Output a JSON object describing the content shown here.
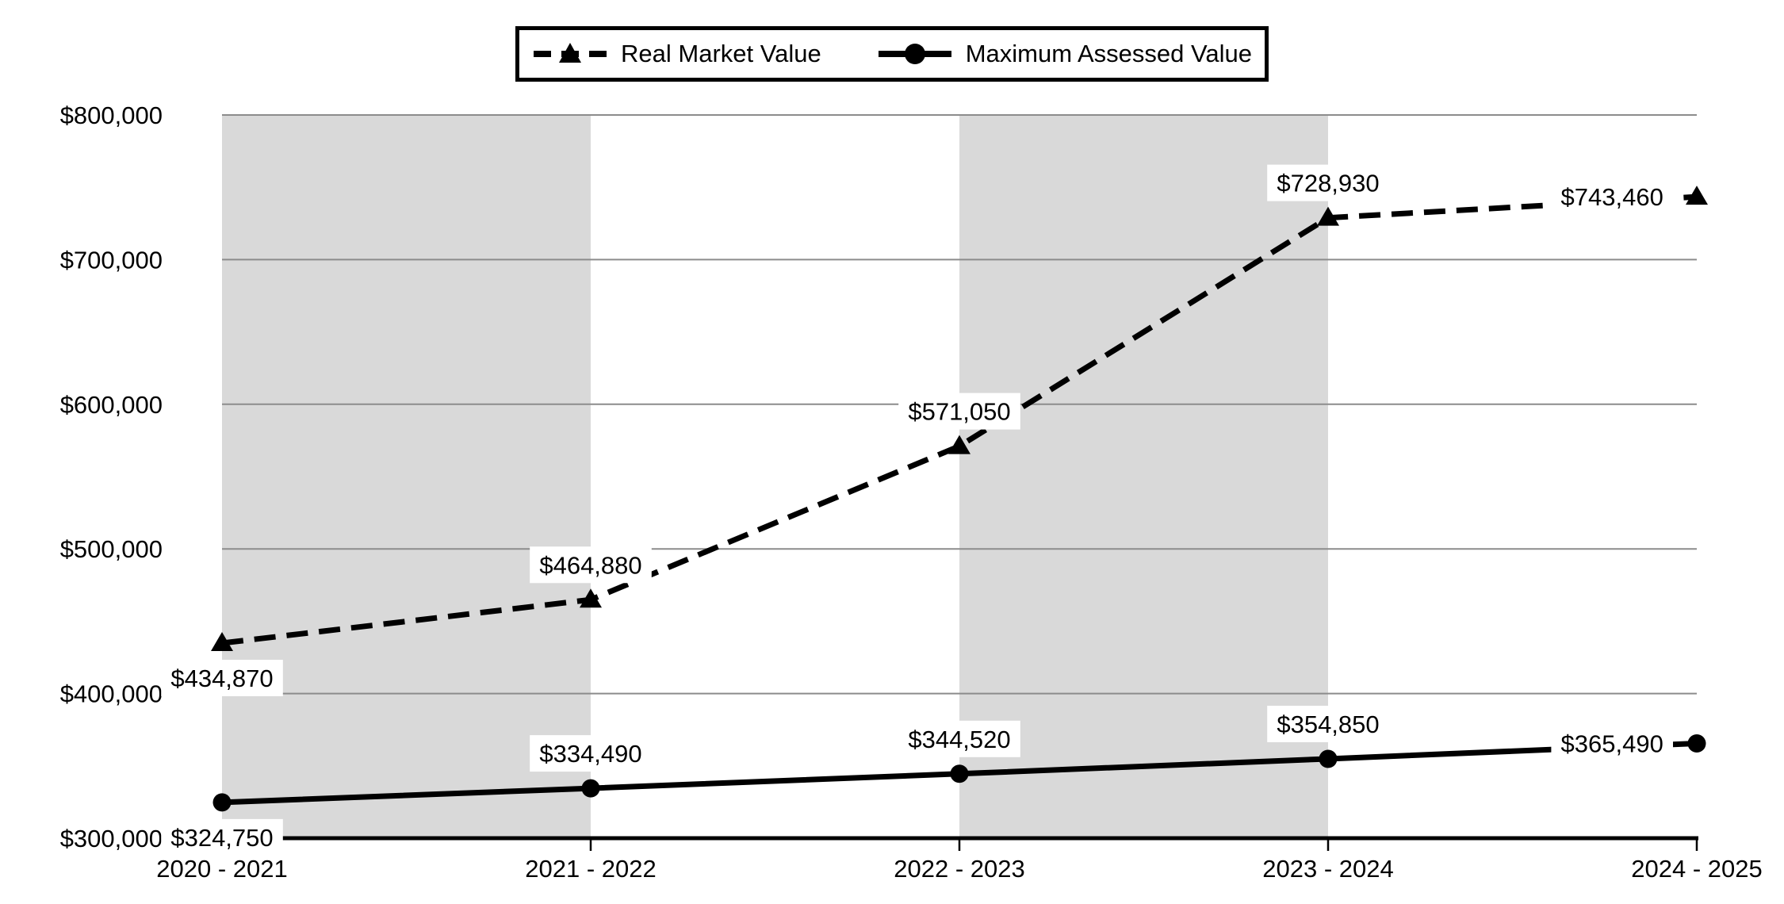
{
  "chart_data": {
    "type": "line",
    "categories": [
      "2020 - 2021",
      "2021 - 2022",
      "2022 - 2023",
      "2023 - 2024",
      "2024 - 2025"
    ],
    "series": [
      {
        "name": "Real Market Value",
        "line_style": "dashed",
        "marker": "triangle",
        "color": "#000000",
        "values": [
          434870,
          464880,
          571050,
          728930,
          743460
        ],
        "labels": [
          "$434,870",
          "$464,880",
          "$571,050",
          "$728,930",
          "$743,460"
        ],
        "label_placement": [
          "below",
          "above",
          "above",
          "above",
          "left"
        ]
      },
      {
        "name": "Maximum Assessed Value",
        "line_style": "solid",
        "marker": "circle",
        "color": "#000000",
        "values": [
          324750,
          334490,
          344520,
          354850,
          365490
        ],
        "labels": [
          "$324,750",
          "$334,490",
          "$344,520",
          "$354,850",
          "$365,490"
        ],
        "label_placement": [
          "below",
          "above",
          "above",
          "above",
          "left"
        ]
      }
    ],
    "ylim": [
      300000,
      800000
    ],
    "y_ticks": [
      {
        "value": 300000,
        "label": "$300,000"
      },
      {
        "value": 400000,
        "label": "$400,000"
      },
      {
        "value": 500000,
        "label": "$500,000"
      },
      {
        "value": 600000,
        "label": "$600,000"
      },
      {
        "value": 700000,
        "label": "$700,000"
      },
      {
        "value": 800000,
        "label": "$800,000"
      }
    ],
    "xlabel": "",
    "ylabel": "",
    "title": "",
    "grid": true,
    "legend_position": "top",
    "shaded_bands": [
      [
        0,
        1
      ],
      [
        2,
        3
      ]
    ],
    "colors": {
      "band": "#d9d9d9",
      "gridline": "#8c8c8c",
      "axis": "#000000",
      "label_bg": "#ffffff",
      "text": "#000000"
    }
  }
}
